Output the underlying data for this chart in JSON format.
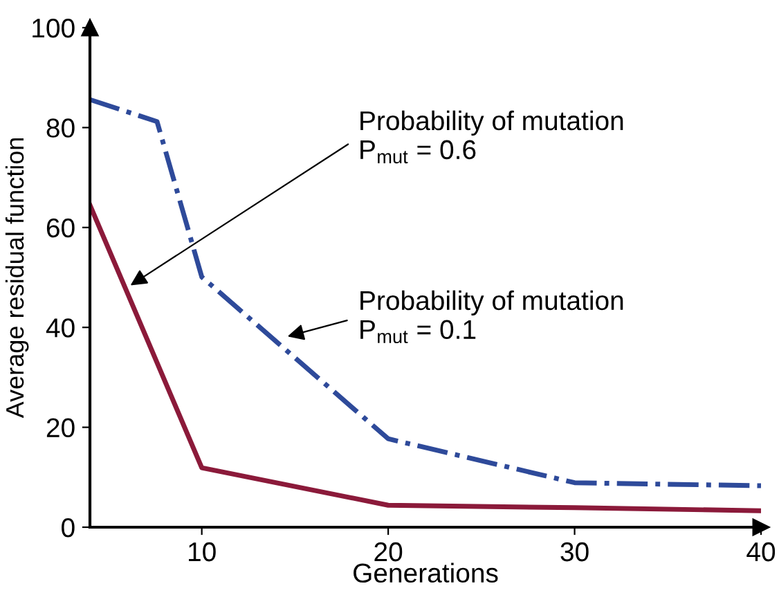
{
  "chart_data": {
    "type": "line",
    "xlabel": "Generations",
    "ylabel": "Average residual function",
    "xlim": [
      4,
      40
    ],
    "xticks": [
      10,
      20,
      30,
      40
    ],
    "ylim": [
      0,
      100
    ],
    "yticks": [
      0,
      20,
      40,
      60,
      80,
      100
    ],
    "grid": false,
    "legend": false,
    "marker": "none",
    "series": [
      {
        "color": "#8b1a3a",
        "line_style": "solid",
        "x": [
          4,
          10,
          20,
          30,
          40
        ],
        "values": [
          64.5,
          11.9,
          4.4,
          3.9,
          3.3
        ]
      },
      {
        "color": "#2e4a9a",
        "line_style": "dashdot",
        "x": [
          4,
          7.6,
          10,
          20,
          30,
          40
        ],
        "values": [
          85.6,
          81.2,
          50.1,
          17.7,
          8.9,
          8.3
        ]
      }
    ],
    "annotations": [
      {
        "text": "Probability of mutation\nP$_{mut}$ = 0.6",
        "x": 6,
        "y": 48
      },
      {
        "text": "Probability of mutation\nP$_{mut}$ = 0.1",
        "x": 14.4,
        "y": 38
      }
    ]
  }
}
